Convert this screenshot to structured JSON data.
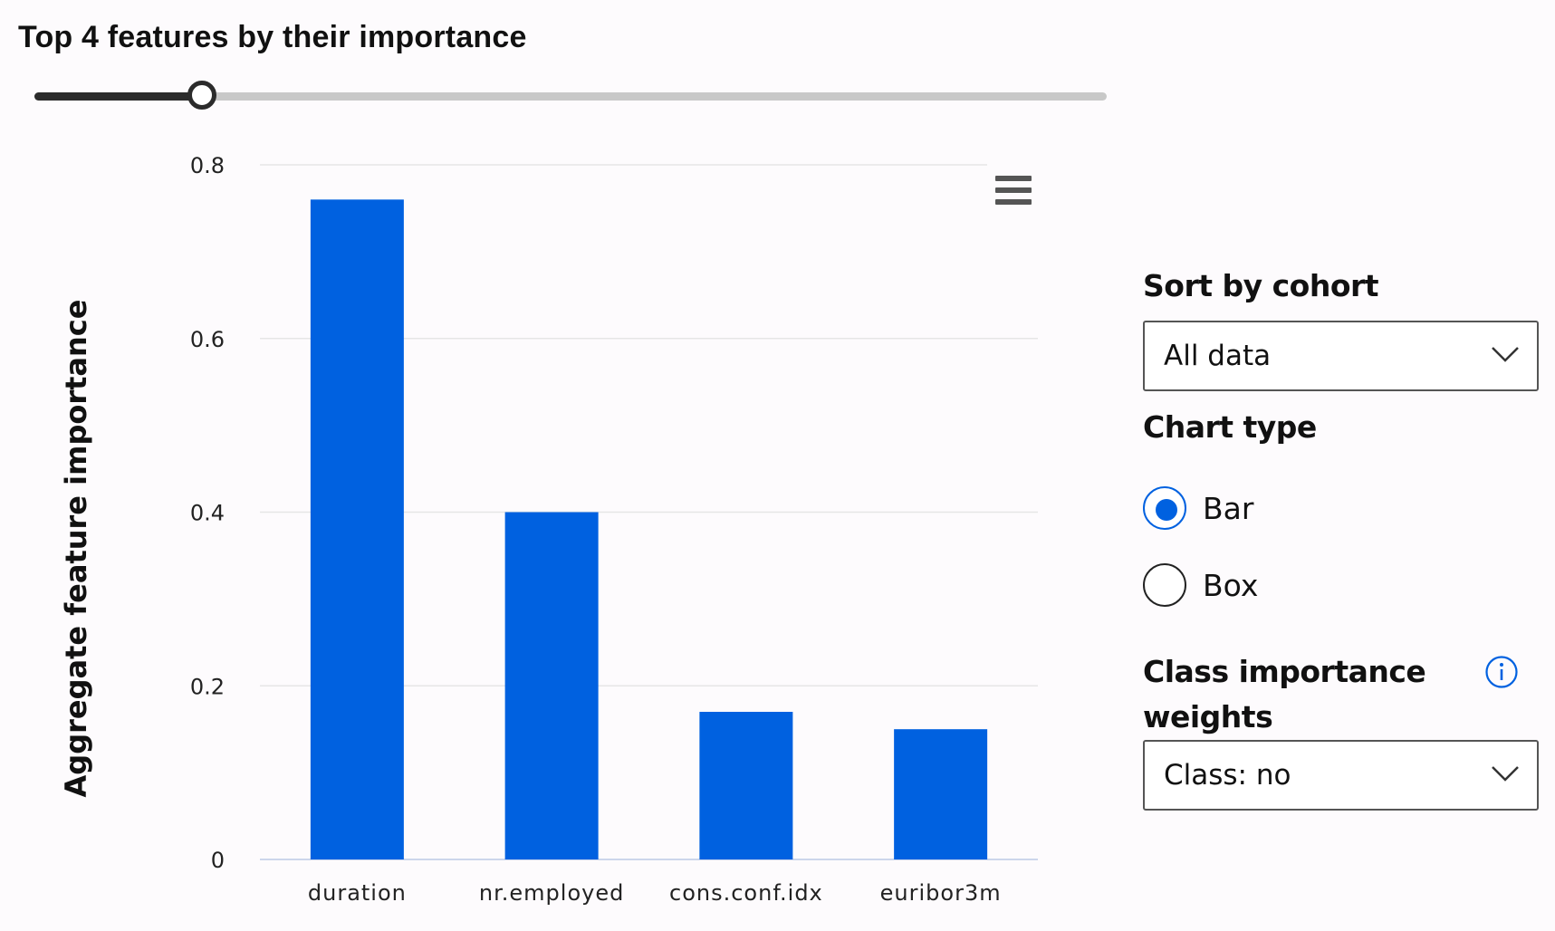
{
  "header": {
    "title": "Top 4 features by their importance",
    "slider_value": 4,
    "slider_fraction": 0.156
  },
  "chart_data": {
    "type": "bar",
    "categories": [
      "duration",
      "nr.employed",
      "cons.conf.idx",
      "euribor3m"
    ],
    "values": [
      0.76,
      0.4,
      0.17,
      0.15
    ],
    "title": "",
    "xlabel": "",
    "ylabel": "Aggregate feature importance",
    "ylim": [
      0,
      0.8
    ],
    "yticks": [
      0,
      0.2,
      0.4,
      0.6,
      0.8
    ],
    "ytick_labels": [
      "0",
      "0.2",
      "0.4",
      "0.6",
      "0.8"
    ],
    "bar_color": "#0061e0",
    "grid": true,
    "legend": "none"
  },
  "controls": {
    "sort_label": "Sort by cohort",
    "sort_value": "All data",
    "chart_type_label": "Chart type",
    "chart_type_options": [
      "Bar",
      "Box"
    ],
    "chart_type_selected": "Bar",
    "class_weights_label_line1": "Class importance",
    "class_weights_label_line2": "weights",
    "class_weights_value": "Class: no"
  },
  "icons": {
    "menu": "hamburger-menu-icon",
    "chevron": "chevron-down-icon",
    "info": "info-icon"
  },
  "colors": {
    "accent": "#0061e0",
    "bar": "#0061e0",
    "slider_active": "#2b2b2b",
    "slider_track": "#c8c8c8"
  }
}
